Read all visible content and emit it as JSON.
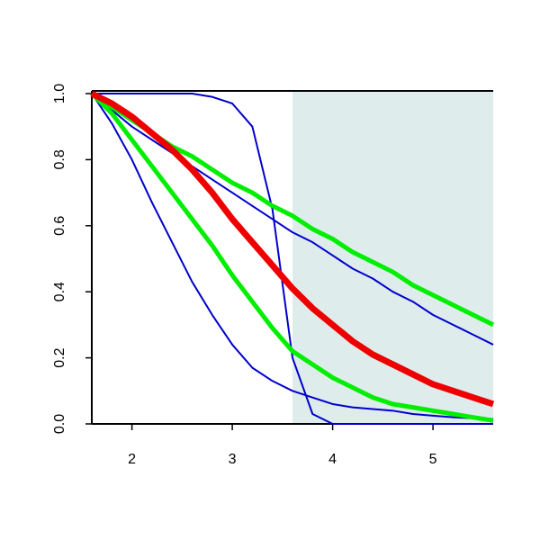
{
  "chart_data": {
    "type": "line",
    "x": [
      1.6,
      1.8,
      2.0,
      2.2,
      2.4,
      2.6,
      2.8,
      3.0,
      3.2,
      3.4,
      3.6,
      3.8,
      4.0,
      4.2,
      4.4,
      4.6,
      4.8,
      5.0,
      5.2,
      5.4,
      5.6
    ],
    "series": [
      {
        "color": "#0000cc",
        "width": 2,
        "values": [
          1,
          1,
          1,
          1,
          1,
          1,
          0.99,
          0.97,
          0.9,
          0.65,
          0.2,
          0.03,
          0,
          0,
          0,
          0,
          0,
          0,
          0,
          0,
          0
        ]
      },
      {
        "color": "#0000cc",
        "width": 2,
        "values": [
          1,
          0.95,
          0.9,
          0.86,
          0.82,
          0.78,
          0.74,
          0.7,
          0.66,
          0.62,
          0.58,
          0.55,
          0.51,
          0.47,
          0.44,
          0.4,
          0.37,
          0.33,
          0.3,
          0.27,
          0.24
        ]
      },
      {
        "color": "#0000cc",
        "width": 2,
        "values": [
          1,
          0.91,
          0.8,
          0.67,
          0.55,
          0.43,
          0.33,
          0.24,
          0.17,
          0.13,
          0.1,
          0.08,
          0.06,
          0.05,
          0.045,
          0.04,
          0.03,
          0.025,
          0.02,
          0.017,
          0.015
        ]
      },
      {
        "color": "#00ee00",
        "width": 5,
        "values": [
          1,
          0.96,
          0.92,
          0.88,
          0.84,
          0.81,
          0.77,
          0.73,
          0.7,
          0.66,
          0.63,
          0.59,
          0.56,
          0.52,
          0.49,
          0.46,
          0.42,
          0.39,
          0.36,
          0.33,
          0.3
        ]
      },
      {
        "color": "#00ee00",
        "width": 5,
        "values": [
          1,
          0.94,
          0.86,
          0.78,
          0.7,
          0.62,
          0.54,
          0.45,
          0.37,
          0.29,
          0.22,
          0.18,
          0.14,
          0.11,
          0.08,
          0.06,
          0.05,
          0.04,
          0.03,
          0.02,
          0.01
        ]
      },
      {
        "color": "#ee0000",
        "width": 7,
        "values": [
          1,
          0.97,
          0.93,
          0.88,
          0.83,
          0.77,
          0.7,
          0.62,
          0.55,
          0.48,
          0.41,
          0.35,
          0.3,
          0.25,
          0.21,
          0.18,
          0.15,
          0.12,
          0.1,
          0.08,
          0.06
        ]
      }
    ],
    "shaded_x": [
      3.6,
      5.6
    ],
    "shade_color": "#deecec",
    "xlim": [
      1.6,
      5.6
    ],
    "ylim": [
      0,
      1
    ],
    "xticks": [
      2,
      3,
      4,
      5
    ],
    "yticks": [
      {
        "value": 0,
        "label": "0.0"
      },
      0.2,
      0.4,
      0.6,
      0.8,
      {
        "value": 1,
        "label": "1.0"
      }
    ]
  }
}
